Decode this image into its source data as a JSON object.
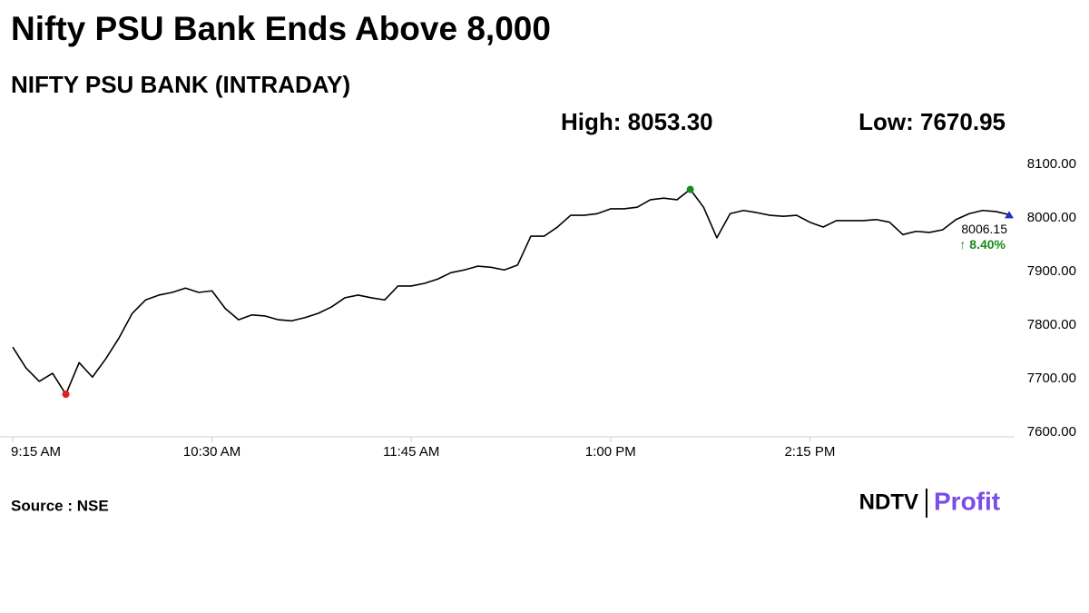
{
  "chart_data": {
    "type": "line",
    "title": "Nifty PSU Bank Ends Above 8,000",
    "subtitle": "NIFTY PSU BANK (INTRADAY)",
    "high_label": "High: 8053.30",
    "low_label": "Low: 7670.95",
    "last_value_label": "8006.15",
    "change_label": "↑ 8.40%",
    "source": "Source : NSE",
    "brand": [
      "NDTV",
      "Profit"
    ],
    "categories": [
      "9:15 AM",
      null,
      null,
      null,
      null,
      null,
      null,
      null,
      null,
      null,
      null,
      null,
      null,
      null,
      null,
      "10:30 AM",
      null,
      null,
      null,
      null,
      null,
      null,
      null,
      null,
      null,
      null,
      null,
      null,
      null,
      null,
      "11:45 AM",
      null,
      null,
      null,
      null,
      null,
      null,
      null,
      null,
      null,
      null,
      null,
      null,
      null,
      null,
      "1:00 PM",
      null,
      null,
      null,
      null,
      null,
      null,
      null,
      null,
      null,
      null,
      null,
      null,
      null,
      null,
      "2:15 PM",
      null,
      null,
      null,
      null,
      null,
      null,
      null,
      null,
      null,
      null,
      null,
      null,
      null,
      null,
      null
    ],
    "values": [
      7759,
      7720,
      7695,
      7710,
      7670.95,
      7730,
      7703,
      7737,
      7776,
      7822,
      7847,
      7856,
      7861,
      7869,
      7861,
      7864,
      7831,
      7810,
      7819,
      7817,
      7810,
      7808,
      7814,
      7822,
      7834,
      7851,
      7856,
      7851,
      7847,
      7873,
      7873,
      7878,
      7886,
      7898,
      7903,
      7910,
      7908,
      7903,
      7912,
      7966,
      7966,
      7983,
      8005,
      8005,
      8008,
      8017,
      8017,
      8020,
      8034,
      8037,
      8034,
      8053.3,
      8020,
      7963,
      8008,
      8014,
      8010,
      8005,
      8003,
      8005,
      7992,
      7983,
      7995,
      7995,
      7995,
      7997,
      7992,
      7969,
      7975,
      7973,
      7978,
      7997,
      8008,
      8014,
      8012,
      8006.15
    ],
    "color": "#000000",
    "high_color": "#1a8a1a",
    "low_color": "#e02020",
    "last_color": "#2030c0",
    "change_color": "#1a8a1a",
    "ylim": [
      7600,
      8100
    ],
    "yticks": [
      {
        "value": 7600,
        "label": "7600.00"
      },
      {
        "value": 7700,
        "label": "7700.00"
      },
      {
        "value": 7800,
        "label": "7800.00"
      },
      {
        "value": 7900,
        "label": "7900.00"
      },
      {
        "value": 8000,
        "label": "8000.00"
      },
      {
        "value": 8100,
        "label": "8100.00"
      }
    ]
  }
}
